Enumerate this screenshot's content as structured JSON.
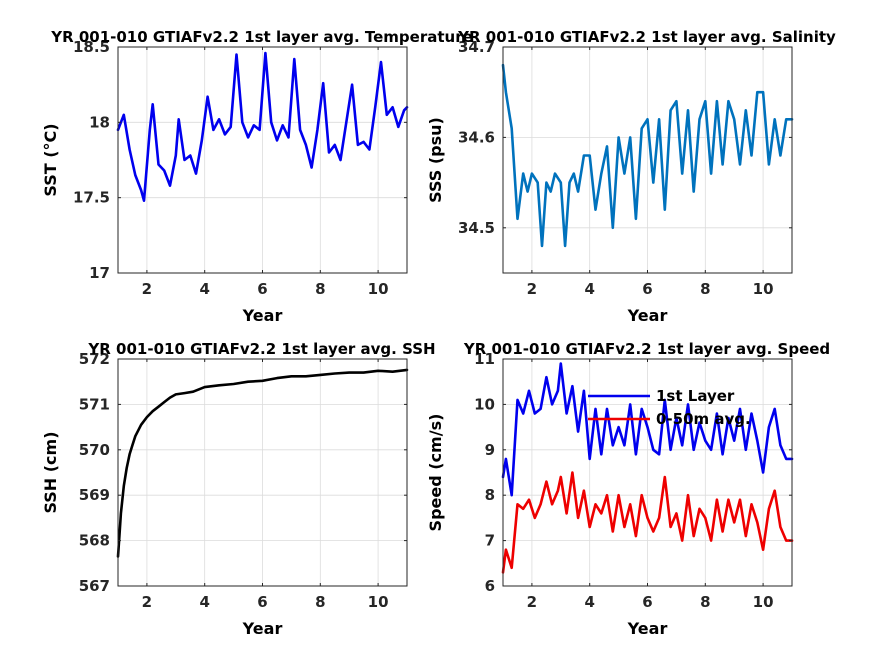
{
  "chart_data": [
    {
      "type": "line",
      "title": "YR 001-010 GTIAFv2.2 1st layer avg. Temperature",
      "xlabel": "Year",
      "ylabel": "SST (°C)",
      "xlim": [
        1,
        11
      ],
      "ylim": [
        17,
        18.5
      ],
      "xticks": [
        2,
        4,
        6,
        8,
        10
      ],
      "yticks": [
        17,
        17.5,
        18,
        18.5
      ],
      "xtick_labels": [
        "2",
        "4",
        "6",
        "8",
        "10"
      ],
      "ytick_labels": [
        "17",
        "17.5",
        "18",
        "18.5"
      ],
      "grid": true,
      "series": [
        {
          "color": "#0000ee",
          "x": [
            1.0,
            1.2,
            1.4,
            1.6,
            1.8,
            1.9,
            2.1,
            2.2,
            2.4,
            2.6,
            2.8,
            3.0,
            3.1,
            3.3,
            3.5,
            3.7,
            3.9,
            4.1,
            4.3,
            4.5,
            4.7,
            4.9,
            5.1,
            5.3,
            5.5,
            5.7,
            5.9,
            6.1,
            6.3,
            6.5,
            6.7,
            6.9,
            7.1,
            7.3,
            7.5,
            7.7,
            7.9,
            8.1,
            8.3,
            8.5,
            8.7,
            8.9,
            9.1,
            9.3,
            9.5,
            9.7,
            9.9,
            10.1,
            10.3,
            10.5,
            10.7,
            10.9,
            11.0
          ],
          "y": [
            17.95,
            18.05,
            17.82,
            17.65,
            17.55,
            17.48,
            17.95,
            18.12,
            17.72,
            17.68,
            17.58,
            17.78,
            18.02,
            17.75,
            17.78,
            17.66,
            17.88,
            18.17,
            17.95,
            18.02,
            17.92,
            17.97,
            18.45,
            18.0,
            17.9,
            17.98,
            17.95,
            18.46,
            18.0,
            17.88,
            17.98,
            17.9,
            18.42,
            17.95,
            17.85,
            17.7,
            17.95,
            18.26,
            17.8,
            17.85,
            17.75,
            18.0,
            18.25,
            17.85,
            17.87,
            17.82,
            18.1,
            18.4,
            18.05,
            18.1,
            17.97,
            18.08,
            18.1
          ]
        }
      ]
    },
    {
      "type": "line",
      "title": "YR 001-010 GTIAFv2.2 1st layer avg. Salinity",
      "xlabel": "Year",
      "ylabel": "SSS (psu)",
      "xlim": [
        1,
        11
      ],
      "ylim": [
        34.45,
        34.7
      ],
      "xticks": [
        2,
        4,
        6,
        8,
        10
      ],
      "yticks": [
        34.5,
        34.6,
        34.7
      ],
      "xtick_labels": [
        "2",
        "4",
        "6",
        "8",
        "10"
      ],
      "ytick_labels": [
        "34.5",
        "34.6",
        "34.7"
      ],
      "grid": true,
      "series": [
        {
          "color": "#0072bd",
          "x": [
            1.0,
            1.1,
            1.3,
            1.5,
            1.7,
            1.85,
            2.0,
            2.2,
            2.35,
            2.5,
            2.65,
            2.8,
            3.0,
            3.15,
            3.3,
            3.45,
            3.6,
            3.8,
            4.0,
            4.2,
            4.4,
            4.6,
            4.8,
            5.0,
            5.2,
            5.4,
            5.6,
            5.8,
            6.0,
            6.2,
            6.4,
            6.6,
            6.8,
            7.0,
            7.2,
            7.4,
            7.6,
            7.8,
            8.0,
            8.2,
            8.4,
            8.6,
            8.8,
            9.0,
            9.2,
            9.4,
            9.6,
            9.8,
            10.0,
            10.2,
            10.4,
            10.6,
            10.8,
            11.0
          ],
          "y": [
            34.68,
            34.65,
            34.61,
            34.51,
            34.56,
            34.54,
            34.56,
            34.55,
            34.48,
            34.55,
            34.54,
            34.56,
            34.55,
            34.48,
            34.55,
            34.56,
            34.54,
            34.58,
            34.58,
            34.52,
            34.56,
            34.59,
            34.5,
            34.6,
            34.56,
            34.6,
            34.51,
            34.61,
            34.62,
            34.55,
            34.62,
            34.52,
            34.63,
            34.64,
            34.56,
            34.63,
            34.54,
            34.62,
            34.64,
            34.56,
            34.64,
            34.57,
            34.64,
            34.62,
            34.57,
            34.63,
            34.58,
            34.65,
            34.65,
            34.57,
            34.62,
            34.58,
            34.62,
            34.62
          ]
        }
      ]
    },
    {
      "type": "line",
      "title": "YR 001-010 GTIAFv2.2 1st layer avg. SSH",
      "xlabel": "Year",
      "ylabel": "SSH (cm)",
      "xlim": [
        1,
        11
      ],
      "ylim": [
        567,
        572
      ],
      "xticks": [
        2,
        4,
        6,
        8,
        10
      ],
      "yticks": [
        567,
        568,
        569,
        570,
        571,
        572
      ],
      "xtick_labels": [
        "2",
        "4",
        "6",
        "8",
        "10"
      ],
      "ytick_labels": [
        "567",
        "568",
        "569",
        "570",
        "571",
        "572"
      ],
      "grid": true,
      "series": [
        {
          "color": "#000000",
          "x": [
            1.0,
            1.05,
            1.1,
            1.2,
            1.3,
            1.4,
            1.5,
            1.6,
            1.8,
            2.0,
            2.2,
            2.4,
            2.6,
            2.8,
            3.0,
            3.3,
            3.6,
            4.0,
            4.5,
            5.0,
            5.5,
            6.0,
            6.5,
            7.0,
            7.5,
            8.0,
            8.5,
            9.0,
            9.5,
            10.0,
            10.5,
            11.0
          ],
          "y": [
            567.65,
            568.1,
            568.6,
            569.2,
            569.6,
            569.9,
            570.1,
            570.3,
            570.55,
            570.72,
            570.85,
            570.95,
            571.05,
            571.15,
            571.22,
            571.25,
            571.28,
            571.38,
            571.42,
            571.45,
            571.5,
            571.52,
            571.58,
            571.62,
            571.62,
            571.65,
            571.68,
            571.7,
            571.7,
            571.74,
            571.72,
            571.76
          ]
        }
      ]
    },
    {
      "type": "line",
      "title": "YR 001-010 GTIAFv2.2 1st layer avg. Speed",
      "xlabel": "Year",
      "ylabel": "Speed (cm/s)",
      "xlim": [
        1,
        11
      ],
      "ylim": [
        6,
        11
      ],
      "xticks": [
        2,
        4,
        6,
        8,
        10
      ],
      "yticks": [
        6,
        7,
        8,
        9,
        10,
        11
      ],
      "xtick_labels": [
        "2",
        "4",
        "6",
        "8",
        "10"
      ],
      "ytick_labels": [
        "6",
        "7",
        "8",
        "9",
        "10",
        "11"
      ],
      "grid": true,
      "legend": "top-right",
      "series": [
        {
          "name": "1st Layer",
          "color": "#0000ee",
          "x": [
            1.0,
            1.1,
            1.3,
            1.5,
            1.7,
            1.9,
            2.1,
            2.3,
            2.5,
            2.7,
            2.9,
            3.0,
            3.2,
            3.4,
            3.6,
            3.8,
            4.0,
            4.2,
            4.4,
            4.6,
            4.8,
            5.0,
            5.2,
            5.4,
            5.6,
            5.8,
            6.0,
            6.2,
            6.4,
            6.6,
            6.8,
            7.0,
            7.2,
            7.4,
            7.6,
            7.8,
            8.0,
            8.2,
            8.4,
            8.6,
            8.8,
            9.0,
            9.2,
            9.4,
            9.6,
            9.8,
            10.0,
            10.2,
            10.4,
            10.6,
            10.8,
            11.0
          ],
          "y": [
            8.4,
            8.8,
            8.0,
            10.1,
            9.8,
            10.3,
            9.8,
            9.9,
            10.6,
            10.0,
            10.3,
            10.9,
            9.8,
            10.4,
            9.4,
            10.3,
            8.8,
            9.9,
            8.9,
            9.9,
            9.1,
            9.5,
            9.1,
            10.0,
            8.9,
            9.9,
            9.5,
            9.0,
            8.9,
            10.1,
            9.0,
            9.7,
            9.1,
            10.0,
            9.0,
            9.6,
            9.2,
            9.0,
            9.8,
            8.9,
            9.7,
            9.2,
            9.9,
            9.0,
            9.8,
            9.2,
            8.5,
            9.5,
            9.9,
            9.1,
            8.8,
            8.8
          ]
        },
        {
          "name": "0-50m avg.",
          "color": "#ee0000",
          "x": [
            1.0,
            1.1,
            1.3,
            1.5,
            1.7,
            1.9,
            2.1,
            2.3,
            2.5,
            2.7,
            2.9,
            3.0,
            3.2,
            3.4,
            3.6,
            3.8,
            4.0,
            4.2,
            4.4,
            4.6,
            4.8,
            5.0,
            5.2,
            5.4,
            5.6,
            5.8,
            6.0,
            6.2,
            6.4,
            6.6,
            6.8,
            7.0,
            7.2,
            7.4,
            7.6,
            7.8,
            8.0,
            8.2,
            8.4,
            8.6,
            8.8,
            9.0,
            9.2,
            9.4,
            9.6,
            9.8,
            10.0,
            10.2,
            10.4,
            10.6,
            10.8,
            11.0
          ],
          "y": [
            6.3,
            6.8,
            6.4,
            7.8,
            7.7,
            7.9,
            7.5,
            7.8,
            8.3,
            7.8,
            8.1,
            8.4,
            7.6,
            8.5,
            7.5,
            8.1,
            7.3,
            7.8,
            7.6,
            8.0,
            7.2,
            8.0,
            7.3,
            7.8,
            7.1,
            8.0,
            7.5,
            7.2,
            7.5,
            8.4,
            7.3,
            7.6,
            7.0,
            8.0,
            7.1,
            7.7,
            7.5,
            7.0,
            7.9,
            7.2,
            7.9,
            7.4,
            7.9,
            7.1,
            7.8,
            7.4,
            6.8,
            7.7,
            8.1,
            7.3,
            7.0,
            7.0
          ]
        }
      ]
    }
  ]
}
